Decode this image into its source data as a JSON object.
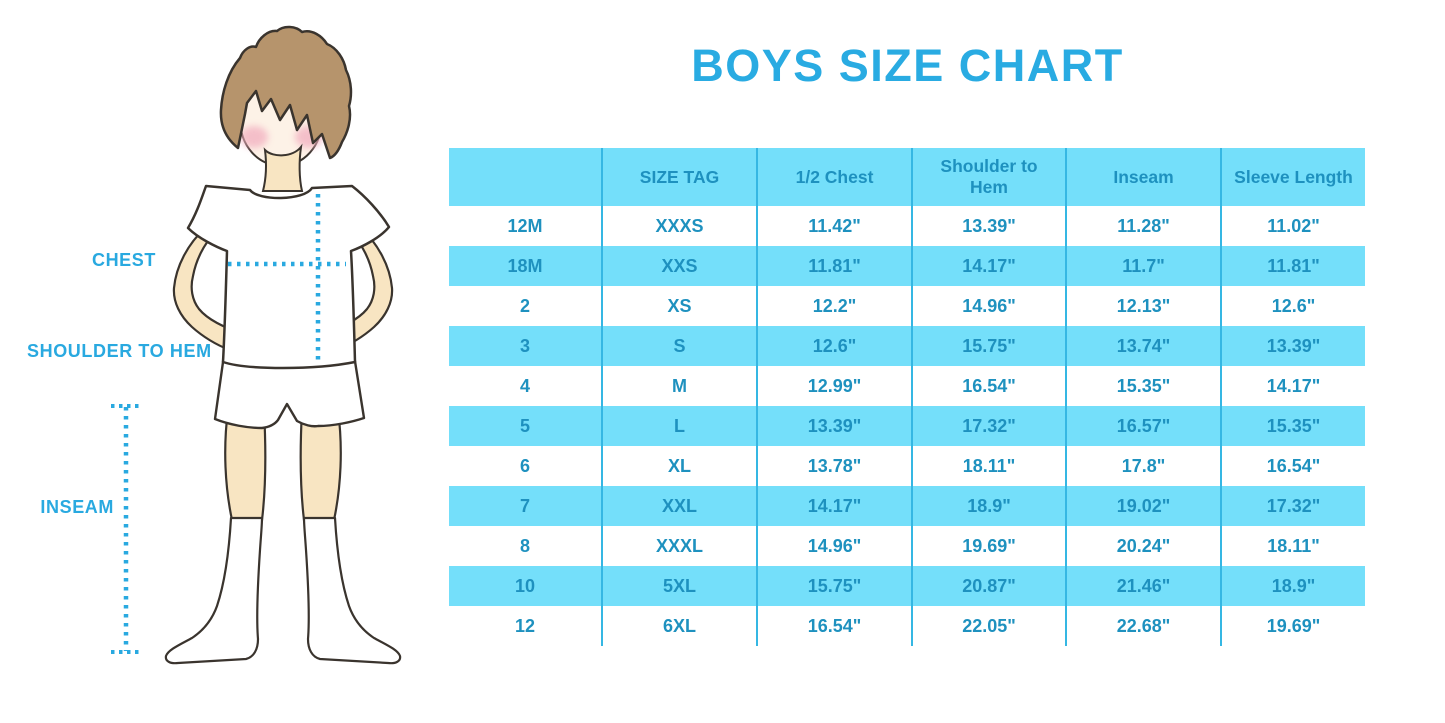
{
  "title": "BOYS SIZE CHART",
  "figure_labels": {
    "chest": "CHEST",
    "shoulder_to_hem": "SHOULDER TO HEM",
    "inseam": "INSEAM"
  },
  "colors": {
    "title_blue": "#29ABE2",
    "label_and_dotted_line_blue": "#29A9E0",
    "table_cell_blue": "#74DFFA",
    "table_divider_blue": "#35B7E3",
    "table_text_blue": "#1E91BF",
    "skin": "#F8E5C2",
    "hair_brown": "#B6946C",
    "blush_pink": "#F2AFC0"
  },
  "chart_data": {
    "type": "table",
    "title": "BOYS SIZE CHART",
    "columns": [
      "",
      "SIZE TAG",
      "1/2 Chest",
      "Shoulder to Hem",
      "Inseam",
      "Sleeve Length"
    ],
    "rows": [
      [
        "12M",
        "XXXS",
        "11.42\"",
        "13.39\"",
        "11.28\"",
        "11.02\""
      ],
      [
        "18M",
        "XXS",
        "11.81\"",
        "14.17\"",
        "11.7\"",
        "11.81\""
      ],
      [
        "2",
        "XS",
        "12.2\"",
        "14.96\"",
        "12.13\"",
        "12.6\""
      ],
      [
        "3",
        "S",
        "12.6\"",
        "15.75\"",
        "13.74\"",
        "13.39\""
      ],
      [
        "4",
        "M",
        "12.99\"",
        "16.54\"",
        "15.35\"",
        "14.17\""
      ],
      [
        "5",
        "L",
        "13.39\"",
        "17.32\"",
        "16.57\"",
        "15.35\""
      ],
      [
        "6",
        "XL",
        "13.78\"",
        "18.11\"",
        "17.8\"",
        "16.54\""
      ],
      [
        "7",
        "XXL",
        "14.17\"",
        "18.9\"",
        "19.02\"",
        "17.32\""
      ],
      [
        "8",
        "XXXL",
        "14.96\"",
        "19.69\"",
        "20.24\"",
        "18.11\""
      ],
      [
        "10",
        "5XL",
        "15.75\"",
        "20.87\"",
        "21.46\"",
        "18.9\""
      ],
      [
        "12",
        "6XL",
        "16.54\"",
        "22.05\"",
        "22.68\"",
        "19.69\""
      ]
    ],
    "layout": {
      "header_fill": "light blue",
      "row_striping": "white / light blue alternating",
      "column_dividers": "vertical cyan lines"
    }
  }
}
